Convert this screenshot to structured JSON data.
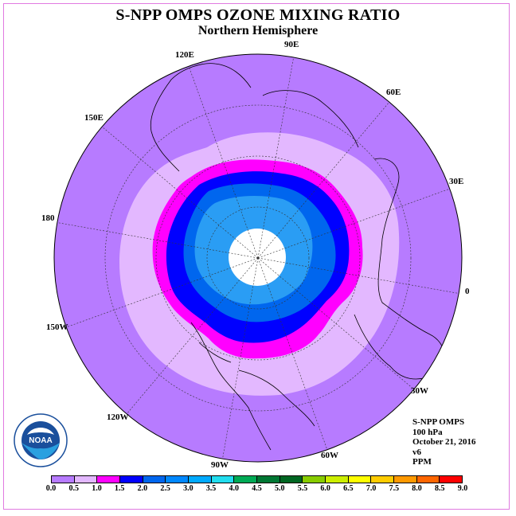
{
  "title": "S-NPP OMPS OZONE MIXING RATIO",
  "subtitle": "Northern Hemisphere",
  "longitude_labels": [
    "90E",
    "60E",
    "30E",
    "0",
    "30W",
    "60W",
    "90W",
    "120W",
    "150W",
    "180",
    "150E",
    "120E"
  ],
  "info": {
    "instrument": "S-NPP OMPS",
    "level": "100 hPa",
    "date": "October 21, 2016",
    "version": "v6",
    "units": "PPM"
  },
  "logo": {
    "name": "NOAA",
    "ring_text": "NATIONAL OCEANIC AND ATMOSPHERIC ADMINISTRATION · U.S. DEPARTMENT OF COMMERCE"
  },
  "colorbar": {
    "ticks": [
      "0.0",
      "0.5",
      "1.0",
      "1.5",
      "2.0",
      "2.5",
      "3.0",
      "3.5",
      "4.0",
      "4.5",
      "5.0",
      "5.5",
      "6.0",
      "6.5",
      "7.0",
      "7.5",
      "8.0",
      "8.5",
      "9.0"
    ],
    "colors": [
      "#b77bff",
      "#e3b8ff",
      "#ff00ff",
      "#0000ff",
      "#0066ee",
      "#0088ff",
      "#00aaff",
      "#22ddee",
      "#00aa55",
      "#007733",
      "#006622",
      "#88cc00",
      "#ccee00",
      "#ffff00",
      "#ffcc00",
      "#ff9900",
      "#ff6600",
      "#ff0000",
      "#885533"
    ]
  },
  "colors": {
    "background_disk": "#b77bff",
    "ring_light": "#e3b8ff",
    "ring_magenta": "#ff00ff",
    "ring_blue": "#0000ff",
    "ring_mid": "#0066ee",
    "ring_core": "#2a9df4",
    "no_data_center": "#ffffff"
  }
}
